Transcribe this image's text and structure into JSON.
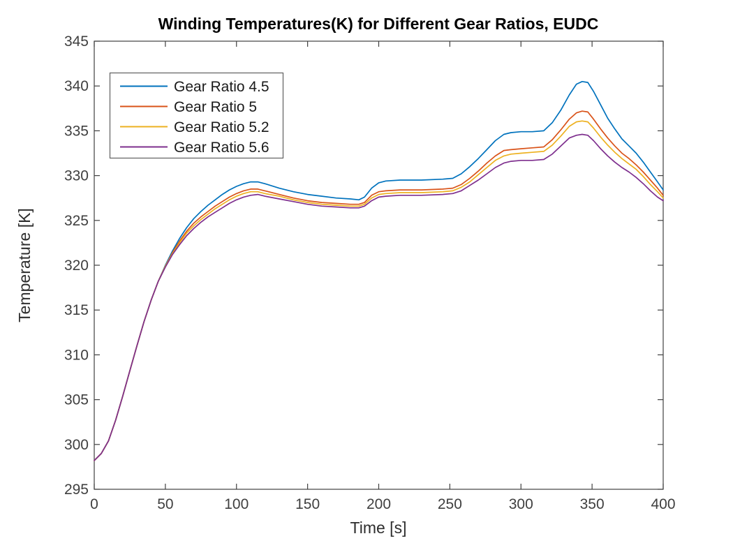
{
  "figure": {
    "background": "#ffffff",
    "axis_color": "#404040",
    "legend_border_color": "#5f5f5f"
  },
  "chart_data": {
    "type": "line",
    "title": "Winding Temperatures(K) for Different Gear Ratios, EUDC",
    "xlabel": "Time [s]",
    "ylabel": "Temperature [K]",
    "xlim": [
      0,
      400
    ],
    "ylim": [
      295,
      345
    ],
    "xticks": [
      0,
      50,
      100,
      150,
      200,
      250,
      300,
      350,
      400
    ],
    "yticks": [
      295,
      300,
      305,
      310,
      315,
      320,
      325,
      330,
      335,
      340,
      345
    ],
    "grid": false,
    "legend_position": "upper-left",
    "x": [
      0,
      5,
      10,
      15,
      20,
      25,
      30,
      35,
      40,
      45,
      50,
      55,
      60,
      65,
      70,
      75,
      80,
      85,
      90,
      95,
      100,
      105,
      110,
      115,
      120,
      130,
      140,
      150,
      160,
      170,
      180,
      186,
      190,
      195,
      200,
      205,
      215,
      230,
      245,
      252,
      258,
      264,
      270,
      276,
      282,
      288,
      293,
      300,
      308,
      316,
      322,
      328,
      334,
      339,
      343,
      347,
      351,
      356,
      361,
      366,
      371,
      376,
      381,
      386,
      391,
      396,
      400
    ],
    "series": [
      {
        "name": "Gear Ratio 4.5",
        "color": "#0072BD",
        "values": [
          298.2,
          299.0,
          300.4,
          302.7,
          305.4,
          308.2,
          311.0,
          313.7,
          316.1,
          318.2,
          320.0,
          321.6,
          323.0,
          324.2,
          325.2,
          326.0,
          326.7,
          327.3,
          327.9,
          328.4,
          328.8,
          329.1,
          329.3,
          329.3,
          329.1,
          328.6,
          328.2,
          327.9,
          327.7,
          327.5,
          327.4,
          327.3,
          327.6,
          328.6,
          329.2,
          329.4,
          329.5,
          329.5,
          329.6,
          329.7,
          330.2,
          331.0,
          331.9,
          332.9,
          333.9,
          334.6,
          334.8,
          334.9,
          334.9,
          335.0,
          335.9,
          337.3,
          339.0,
          340.2,
          340.5,
          340.4,
          339.4,
          337.9,
          336.4,
          335.2,
          334.1,
          333.3,
          332.5,
          331.5,
          330.4,
          329.3,
          328.4
        ]
      },
      {
        "name": "Gear Ratio 5",
        "color": "#D95319",
        "values": [
          298.2,
          299.0,
          300.4,
          302.7,
          305.4,
          308.2,
          311.0,
          313.7,
          316.1,
          318.2,
          319.9,
          321.4,
          322.7,
          323.8,
          324.7,
          325.4,
          326.0,
          326.6,
          327.1,
          327.6,
          328.0,
          328.3,
          328.5,
          328.5,
          328.3,
          327.9,
          327.5,
          327.2,
          327.0,
          326.9,
          326.8,
          326.8,
          327.0,
          327.8,
          328.2,
          328.3,
          328.4,
          328.4,
          328.5,
          328.6,
          329.0,
          329.7,
          330.5,
          331.4,
          332.2,
          332.8,
          332.9,
          333.0,
          333.1,
          333.2,
          334.0,
          335.1,
          336.3,
          337.0,
          337.2,
          337.1,
          336.3,
          335.2,
          334.2,
          333.3,
          332.5,
          331.9,
          331.2,
          330.4,
          329.5,
          328.6,
          327.8
        ]
      },
      {
        "name": "Gear Ratio 5.2",
        "color": "#EDB120",
        "values": [
          298.2,
          299.0,
          300.4,
          302.7,
          305.4,
          308.2,
          311.0,
          313.7,
          316.1,
          318.2,
          319.9,
          321.3,
          322.5,
          323.6,
          324.4,
          325.1,
          325.7,
          326.3,
          326.8,
          327.3,
          327.7,
          328.0,
          328.2,
          328.2,
          328.0,
          327.7,
          327.3,
          327.0,
          326.8,
          326.7,
          326.6,
          326.6,
          326.8,
          327.5,
          327.9,
          328.0,
          328.1,
          328.1,
          328.2,
          328.3,
          328.7,
          329.3,
          330.1,
          330.9,
          331.7,
          332.2,
          332.4,
          332.5,
          332.6,
          332.7,
          333.4,
          334.4,
          335.5,
          336.0,
          336.1,
          336.0,
          335.3,
          334.3,
          333.4,
          332.6,
          331.9,
          331.3,
          330.7,
          329.9,
          329.0,
          328.2,
          327.5
        ]
      },
      {
        "name": "Gear Ratio 5.6",
        "color": "#7E2F8E",
        "values": [
          298.2,
          299.0,
          300.4,
          302.7,
          305.4,
          308.2,
          311.0,
          313.7,
          316.1,
          318.2,
          319.8,
          321.2,
          322.3,
          323.3,
          324.1,
          324.8,
          325.4,
          325.9,
          326.4,
          326.9,
          327.3,
          327.6,
          327.8,
          327.9,
          327.7,
          327.4,
          327.1,
          326.8,
          326.6,
          326.5,
          326.4,
          326.4,
          326.6,
          327.2,
          327.6,
          327.7,
          327.8,
          327.8,
          327.9,
          328.0,
          328.3,
          328.9,
          329.5,
          330.2,
          330.9,
          331.4,
          331.6,
          331.7,
          331.7,
          331.8,
          332.4,
          333.3,
          334.2,
          334.5,
          334.6,
          334.5,
          333.9,
          333.0,
          332.2,
          331.5,
          330.9,
          330.4,
          329.8,
          329.1,
          328.3,
          327.6,
          327.2
        ]
      }
    ]
  }
}
